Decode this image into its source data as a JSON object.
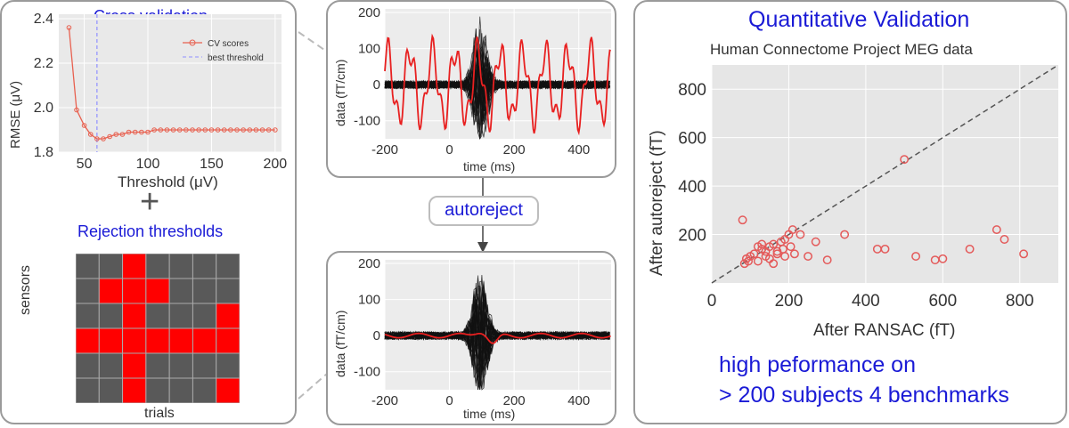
{
  "cv_panel": {
    "title": "Cross validation",
    "plus": "+",
    "rejection_title": "Rejection thresholds",
    "sensors_label": "sensors",
    "trials_label": "trials"
  },
  "cv_chart": {
    "type": "line",
    "xlabel": "Threshold (μV)",
    "ylabel": "RMSE (μV)",
    "xlim": [
      30,
      205
    ],
    "ylim": [
      1.8,
      2.42
    ],
    "xticks": [
      50,
      100,
      150,
      200
    ],
    "yticks": [
      1.8,
      2.0,
      2.2,
      2.4
    ],
    "ytick_labels": [
      "1.8",
      "2.0",
      "2.2",
      "2.4"
    ],
    "series": [
      {
        "name": "CV scores",
        "x": [
          38,
          44,
          50,
          55,
          60,
          65,
          70,
          75,
          80,
          85,
          90,
          95,
          100,
          105,
          110,
          115,
          120,
          125,
          130,
          135,
          140,
          145,
          150,
          155,
          160,
          165,
          170,
          175,
          180,
          185,
          190,
          195,
          200
        ],
        "y": [
          2.36,
          1.99,
          1.92,
          1.88,
          1.86,
          1.86,
          1.87,
          1.88,
          1.88,
          1.89,
          1.89,
          1.89,
          1.89,
          1.9,
          1.9,
          1.9,
          1.9,
          1.9,
          1.9,
          1.9,
          1.9,
          1.9,
          1.9,
          1.9,
          1.9,
          1.9,
          1.9,
          1.9,
          1.9,
          1.9,
          1.9,
          1.9,
          1.9
        ]
      }
    ],
    "best_threshold": 60,
    "legend": [
      "CV scores",
      "best threshold"
    ],
    "legend_position": "top-right"
  },
  "matrix": {
    "rows": 6,
    "cols": 7,
    "bad_color": "#ff0000",
    "good_color": "#595959",
    "cells": [
      [
        0,
        0,
        1,
        0,
        0,
        0,
        0
      ],
      [
        0,
        1,
        1,
        1,
        0,
        0,
        0
      ],
      [
        0,
        0,
        1,
        0,
        0,
        0,
        1
      ],
      [
        1,
        1,
        1,
        1,
        1,
        1,
        1
      ],
      [
        0,
        0,
        1,
        0,
        0,
        0,
        0
      ],
      [
        0,
        0,
        1,
        0,
        0,
        0,
        1
      ]
    ]
  },
  "meg_top": {
    "ylabel": "data (fT/cm)",
    "xlabel": "time (ms)",
    "xticks": [
      -200,
      0,
      200,
      400
    ],
    "yticks": [
      200,
      100,
      0,
      -100
    ],
    "xlim": [
      -200,
      500
    ],
    "ylim": [
      -150,
      210
    ]
  },
  "autoreject_label": "autoreject",
  "meg_bottom": {
    "ylabel": "data (fT/cm)",
    "xlabel": "time (ms)",
    "xticks": [
      -200,
      0,
      200,
      400
    ],
    "yticks": [
      200,
      100,
      0,
      -100
    ],
    "xlim": [
      -200,
      500
    ],
    "ylim": [
      -150,
      210
    ]
  },
  "quant_panel": {
    "title": "Quantitative Validation",
    "subtitle": "Human Connectome Project MEG data",
    "footer_line1": "high peformance on",
    "footer_line2": "> 200 subjects 4 benchmarks"
  },
  "chart_data": {
    "type": "scatter",
    "title": "Quantitative Validation",
    "subtitle": "Human Connectome Project MEG data",
    "xlabel": "After RANSAC (fT)",
    "ylabel": "After autoreject (fT)",
    "xlim": [
      0,
      900
    ],
    "ylim": [
      0,
      900
    ],
    "xticks": [
      0,
      200,
      400,
      600,
      800
    ],
    "yticks": [
      200,
      400,
      600,
      800
    ],
    "diagonal": true,
    "x": [
      80,
      90,
      100,
      110,
      120,
      130,
      140,
      150,
      160,
      170,
      180,
      190,
      200,
      210,
      85,
      120,
      150,
      170,
      190,
      205,
      215,
      230,
      250,
      270,
      300,
      130,
      160,
      185,
      345,
      430,
      450,
      500,
      530,
      580,
      600,
      670,
      740,
      760,
      810,
      95,
      140
    ],
    "y": [
      260,
      100,
      110,
      120,
      150,
      140,
      130,
      150,
      160,
      120,
      170,
      180,
      200,
      220,
      80,
      90,
      100,
      130,
      110,
      150,
      120,
      200,
      110,
      170,
      95,
      160,
      80,
      140,
      200,
      140,
      140,
      510,
      110,
      95,
      100,
      140,
      220,
      180,
      120,
      90,
      110
    ]
  }
}
